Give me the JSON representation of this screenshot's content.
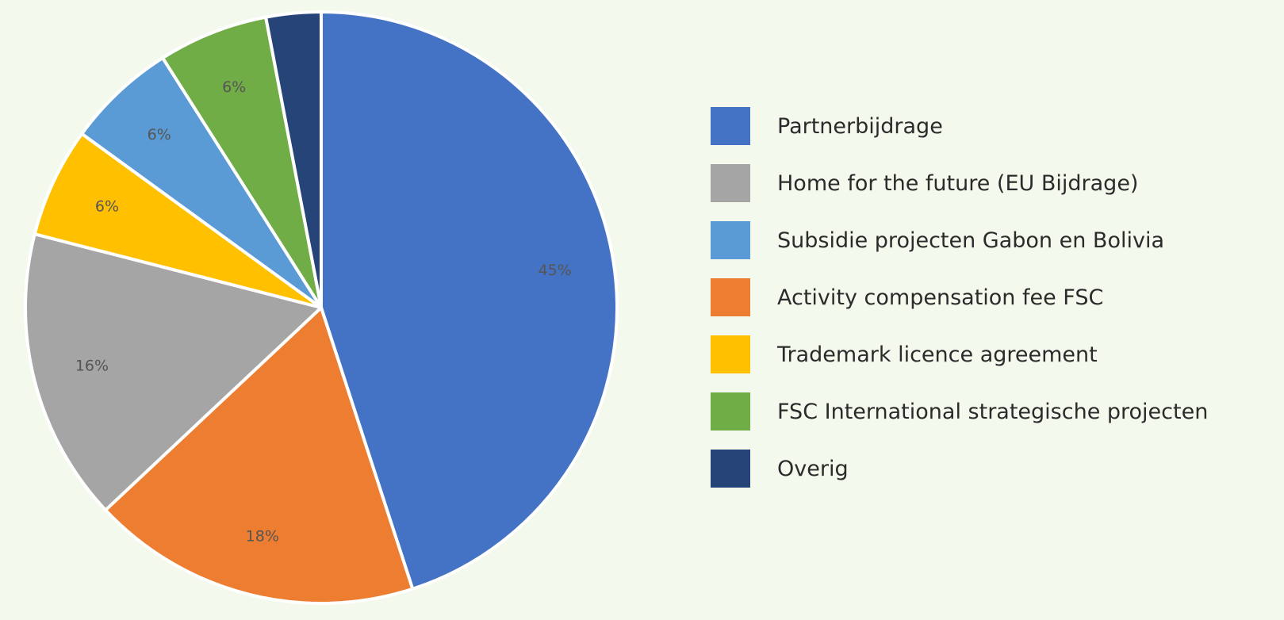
{
  "chart_data": {
    "type": "pie",
    "start_angle_deg": 0,
    "direction": "clockwise",
    "legend_position": "right",
    "slices": [
      {
        "label": "Partnerbijdrage",
        "value": 45,
        "data_label": "45%",
        "color": "#4472c4"
      },
      {
        "label": "Activity compensation fee FSC",
        "value": 18,
        "data_label": "18%",
        "color": "#ed7d31"
      },
      {
        "label": "Home for the future (EU Bijdrage)",
        "value": 16,
        "data_label": "16%",
        "color": "#a5a5a5"
      },
      {
        "label": "Trademark licence agreement",
        "value": 6,
        "data_label": "6%",
        "color": "#ffc000"
      },
      {
        "label": "Subsidie projecten Gabon en Bolivia",
        "value": 6,
        "data_label": "6%",
        "color": "#5b9bd5"
      },
      {
        "label": "FSC International strategische projecten",
        "value": 6,
        "data_label": "6%",
        "color": "#70ad47"
      },
      {
        "label": "Overig",
        "value": 3,
        "data_label": "",
        "color": "#264478"
      }
    ],
    "legend": [
      {
        "label": "Partnerbijdrage",
        "color": "#4472c4"
      },
      {
        "label": "Home for the future (EU Bijdrage)",
        "color": "#a5a5a5"
      },
      {
        "label": "Subsidie projecten Gabon en Bolivia",
        "color": "#5b9bd5"
      },
      {
        "label": "Activity compensation fee FSC",
        "color": "#ed7d31"
      },
      {
        "label": "Trademark licence agreement",
        "color": "#ffc000"
      },
      {
        "label": "FSC International strategische projecten",
        "color": "#70ad47"
      },
      {
        "label": "Overig",
        "color": "#264478"
      }
    ]
  }
}
